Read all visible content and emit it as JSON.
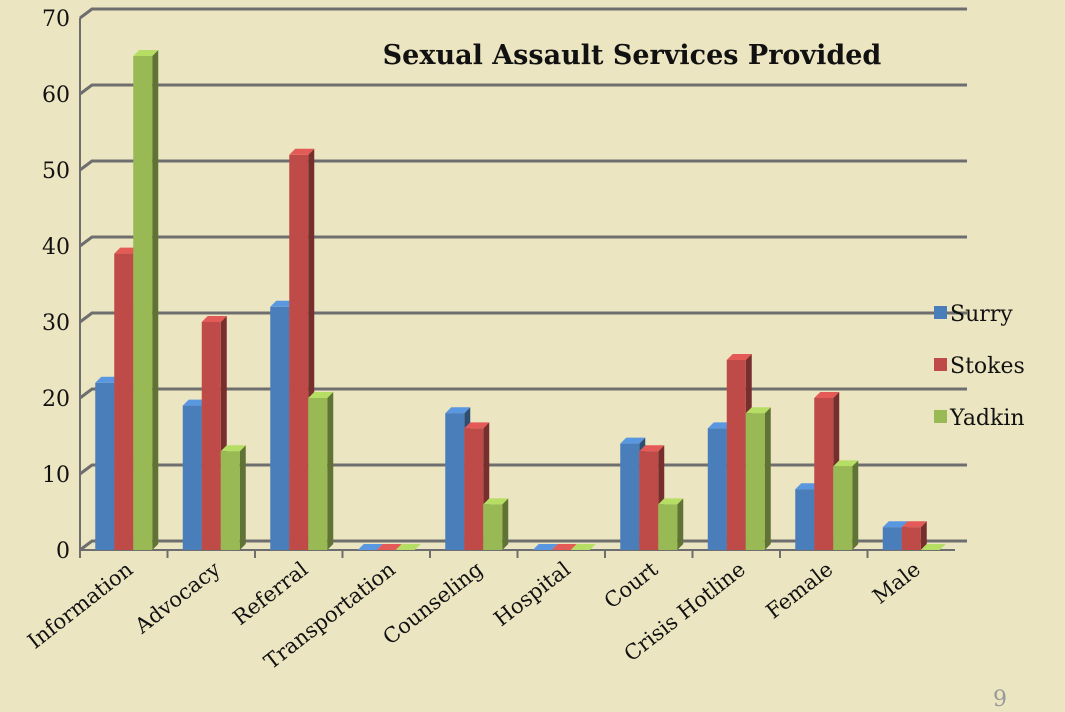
{
  "chart_data": {
    "type": "bar",
    "title": "Sexual Assault Services Provided",
    "categories": [
      "Information",
      "Advocacy",
      "Referral",
      "Transportation",
      "Counseling",
      "Hospital",
      "Court",
      "Crisis Hotline",
      "Female",
      "Male"
    ],
    "series": [
      {
        "name": "Surry",
        "color": "#4a7ebb",
        "values": [
          22,
          19,
          32,
          0,
          18,
          0,
          14,
          16,
          8,
          3
        ]
      },
      {
        "name": "Stokes",
        "color": "#be4b48",
        "values": [
          39,
          30,
          52,
          0,
          16,
          0,
          13,
          25,
          20,
          3
        ]
      },
      {
        "name": "Yadkin",
        "color": "#98b954",
        "values": [
          65,
          13,
          20,
          0,
          6,
          0,
          6,
          18,
          11,
          0
        ]
      }
    ],
    "ylim": [
      0,
      70
    ],
    "yticks": [
      "0",
      "10",
      "20",
      "30",
      "40",
      "50",
      "60",
      "70"
    ],
    "grid": true,
    "legend_position": "right"
  },
  "page_number": "9"
}
